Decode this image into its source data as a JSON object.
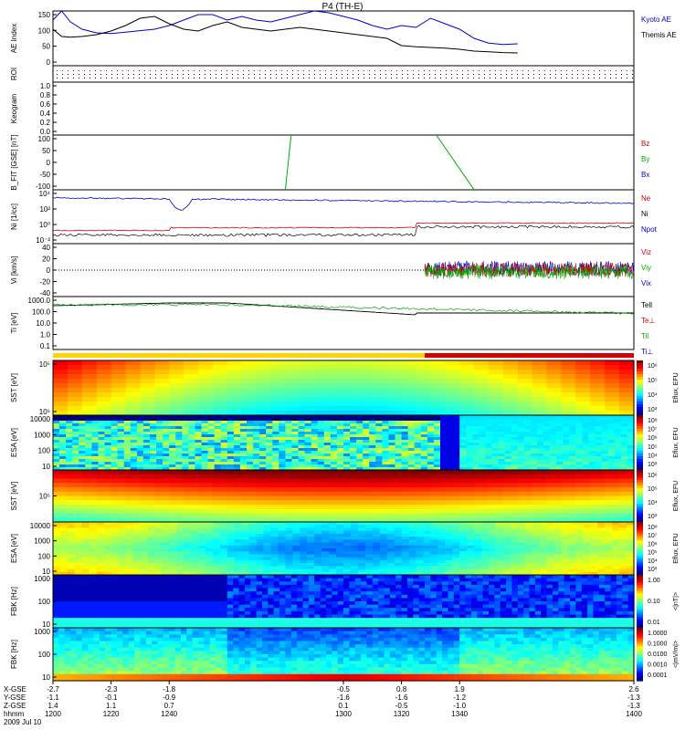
{
  "title": "P4 (TH-E)",
  "date_label": "2009 Jul 10",
  "time_axis": {
    "ticks": [
      "1200",
      "1220",
      "1240",
      "1300",
      "1320",
      "1340",
      "1400"
    ],
    "rows": [
      {
        "label": "X-GSE",
        "values": [
          "-2.7",
          "-2.3",
          "-1.8",
          "-0.5",
          "0.8",
          "1.9",
          "2.6"
        ]
      },
      {
        "label": "Y-GSE",
        "values": [
          "-1.1",
          "-0.1",
          "-0.9",
          "-1.6",
          "-1.6",
          "-1.2",
          "-1.3"
        ]
      },
      {
        "label": "Z-GSE",
        "values": [
          "1.4",
          "1.1",
          "0.7",
          "0.1",
          "-0.5",
          "-1.0",
          "-1.3"
        ]
      },
      {
        "label": "hhmm",
        "values": [
          "1200",
          "1220",
          "1240",
          "1300",
          "1320",
          "1340",
          "1400"
        ]
      }
    ]
  },
  "chart_data": [
    {
      "type": "line",
      "ylabel": "AE Index",
      "ylim": [
        0,
        150
      ],
      "yticks": [
        "150",
        "100",
        "50",
        "0"
      ],
      "x": [
        1200,
        1203,
        1206,
        1210,
        1215,
        1220,
        1225,
        1230,
        1235,
        1240,
        1245,
        1250,
        1255,
        1260,
        1265,
        1270,
        1275,
        1280,
        1285,
        1290,
        1295,
        1300,
        1305,
        1310,
        1315,
        1320,
        1325,
        1330,
        1335,
        1340,
        1345,
        1350,
        1355,
        1360
      ],
      "series": [
        {
          "name": "Kyoto AE",
          "color": "#0000cc",
          "values": [
            125,
            150,
            120,
            100,
            90,
            88,
            92,
            96,
            100,
            110,
            125,
            140,
            140,
            125,
            135,
            125,
            120,
            130,
            140,
            150,
            145,
            135,
            125,
            110,
            100,
            110,
            105,
            130,
            115,
            100,
            75,
            62,
            58,
            60
          ]
        },
        {
          "name": "Themis AE",
          "color": "#000000",
          "values": [
            100,
            80,
            78,
            80,
            85,
            95,
            110,
            130,
            135,
            115,
            100,
            95,
            110,
            120,
            105,
            100,
            95,
            100,
            105,
            100,
            95,
            90,
            85,
            80,
            75,
            55,
            52,
            50,
            48,
            45,
            40,
            38,
            36,
            35
          ]
        }
      ]
    },
    {
      "type": "scatter",
      "ylabel": "ROI"
    },
    {
      "type": "line",
      "ylabel": "Keogram",
      "ylim": [
        0,
        1
      ],
      "yticks": [
        "1.0",
        "0.8",
        "0.6",
        "0.4",
        "0.2",
        "0.0"
      ]
    },
    {
      "type": "line",
      "ylabel": "B_FIT [GSE] [nT]",
      "ylim": [
        -100,
        100
      ],
      "yticks": [
        "100",
        "50",
        "0",
        "-50",
        "-100"
      ],
      "series": [
        {
          "name": "Bz",
          "color": "#cc0000",
          "segments": []
        },
        {
          "name": "By",
          "color": "#00aa00",
          "segments": [
            [
              [
                1280,
                -100
              ],
              [
                1282,
                100
              ]
            ],
            [
              [
                1332,
                100
              ],
              [
                1345,
                -100
              ]
            ]
          ]
        },
        {
          "name": "Bx",
          "color": "#0000cc",
          "segments": []
        }
      ]
    },
    {
      "type": "line",
      "ylabel": "Ni [1/cc]",
      "yscale": "log",
      "yticks": [
        "10⁴",
        "10²",
        "10⁰",
        "10⁻²"
      ],
      "series": [
        {
          "name": "Ne",
          "color": "#cc0000"
        },
        {
          "name": "Ni",
          "color": "#000000"
        },
        {
          "name": "Npot",
          "color": "#0000cc"
        }
      ]
    },
    {
      "type": "line",
      "ylabel": "Vi [km/s]",
      "ylim": [
        -50,
        50
      ],
      "yticks": [
        "40",
        "20",
        "0",
        "-20",
        "-40"
      ],
      "series": [
        {
          "name": "Viz",
          "color": "#cc0000"
        },
        {
          "name": "Viy",
          "color": "#00aa00"
        },
        {
          "name": "Vix",
          "color": "#0000cc"
        }
      ]
    },
    {
      "type": "line",
      "ylabel": "Ti [eV]",
      "yscale": "log",
      "yticks": [
        "1000.0",
        "100.0",
        "10.0",
        "1.0",
        "0.1"
      ],
      "series": [
        {
          "name": "Tell",
          "color": "#000000"
        },
        {
          "name": "Te⊥",
          "color": "#cc0000"
        },
        {
          "name": "Til",
          "color": "#00aa00"
        },
        {
          "name": "Ti⊥",
          "color": "#0000cc"
        }
      ]
    },
    {
      "type": "heatmap",
      "ylabel": "SST [eV]",
      "colorbar_label": "Eflux, EFU",
      "colorbar_ticks": [
        "10⁶",
        "10⁵",
        "10⁴",
        "10³"
      ],
      "yticks": [
        "10⁵",
        "10⁵"
      ]
    },
    {
      "type": "heatmap",
      "ylabel": "ESA [eV]",
      "colorbar_label": "Eflux, EFU",
      "colorbar_ticks": [
        "10⁸",
        "10⁷",
        "10⁶",
        "10⁵",
        "10⁴",
        "10³"
      ],
      "yticks": [
        "10000",
        "1000",
        "100",
        "10"
      ]
    },
    {
      "type": "heatmap",
      "ylabel": "SST [eV]",
      "colorbar_label": "Eflux, EFU",
      "colorbar_ticks": [
        "10⁶",
        "10⁵",
        "10⁴",
        "10³"
      ],
      "yticks": [
        "10⁵"
      ]
    },
    {
      "type": "heatmap",
      "ylabel": "ESA [eV]",
      "colorbar_label": "Eflux, EFU",
      "colorbar_ticks": [
        "10⁸",
        "10⁷",
        "10⁶",
        "10⁵",
        "10⁴",
        "10³"
      ],
      "yticks": [
        "10000",
        "1000",
        "100",
        "10"
      ]
    },
    {
      "type": "heatmap",
      "ylabel": "FBK [Hz]",
      "colorbar_label": "<|nT|>",
      "colorbar_ticks": [
        "1.00",
        "0.10",
        "0.01"
      ],
      "yticks": [
        "1000",
        "100",
        "10"
      ]
    },
    {
      "type": "heatmap",
      "ylabel": "FBK [Hz]",
      "colorbar_label": "<|mV/m|>",
      "colorbar_ticks": [
        "1.0000",
        "0.1000",
        "0.0100",
        "0.0010",
        "0.0001"
      ],
      "yticks": [
        "1000",
        "100",
        "10"
      ]
    }
  ]
}
